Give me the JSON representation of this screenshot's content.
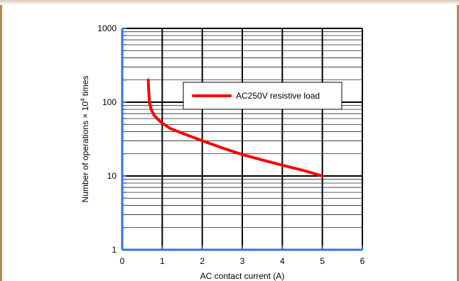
{
  "chart_data": {
    "type": "line",
    "title": "",
    "xlabel": "AC contact current (A)",
    "ylabel": "Number of operations × 10",
    "ylabel_superscript": "4",
    "ylabel_suffix": " times",
    "xlim": [
      0,
      6
    ],
    "ylim": [
      1,
      1000
    ],
    "yscale": "log",
    "grid": true,
    "x_ticks": [
      "0",
      "1",
      "2",
      "3",
      "4",
      "5",
      "6"
    ],
    "y_ticks": [
      "1",
      "10",
      "100",
      "1000"
    ],
    "legend_position": "upper-right",
    "series": [
      {
        "name": "AC250V resistive load",
        "color": "#ff0000",
        "x": [
          0.65,
          0.66,
          0.68,
          0.72,
          0.8,
          0.9,
          1.0,
          1.2,
          1.5,
          2.0,
          2.5,
          3.0,
          3.5,
          4.0,
          4.5,
          5.0
        ],
        "y": [
          200,
          150,
          100,
          80,
          66,
          58,
          52,
          44,
          38,
          30,
          24,
          19.5,
          16.5,
          14,
          12,
          10
        ]
      }
    ]
  }
}
